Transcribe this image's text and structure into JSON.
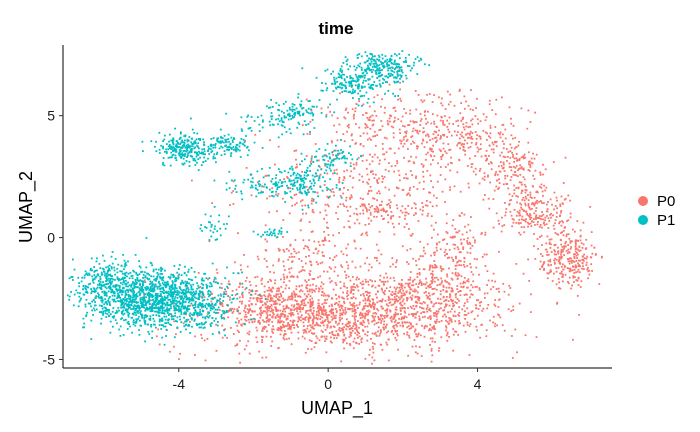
{
  "chart_data": {
    "type": "scatter",
    "title": "time",
    "xlabel": "UMAP_1",
    "ylabel": "UMAP_2",
    "xlim": [
      -7.1,
      7.6
    ],
    "ylim": [
      -5.35,
      7.9
    ],
    "x_ticks": [
      -4,
      0,
      4
    ],
    "y_ticks": [
      -5,
      0,
      5
    ],
    "x_tick_labels": [
      "-4",
      "0",
      "4"
    ],
    "y_tick_labels": [
      "-5",
      "0",
      "5"
    ],
    "grid": false,
    "legend_position": "right",
    "series": [
      {
        "name": "P0",
        "color": "#F8766D",
        "clusters": [
          {
            "cx": 0.3,
            "cy": -3.1,
            "sx": 2.0,
            "sy": 0.8,
            "n": 1300
          },
          {
            "cx": 2.6,
            "cy": -2.4,
            "sx": 1.0,
            "sy": 0.8,
            "n": 350
          },
          {
            "cx": -1.3,
            "cy": -2.8,
            "sx": 0.8,
            "sy": 0.6,
            "n": 250
          },
          {
            "cx": 3.4,
            "cy": -0.8,
            "sx": 0.5,
            "sy": 0.9,
            "n": 150
          },
          {
            "cx": 0.9,
            "cy": 2.0,
            "sx": 1.5,
            "sy": 1.1,
            "n": 380
          },
          {
            "cx": 3.3,
            "cy": 4.3,
            "sx": 0.9,
            "sy": 0.8,
            "n": 320
          },
          {
            "cx": 1.3,
            "cy": 4.9,
            "sx": 0.7,
            "sy": 0.5,
            "n": 100
          },
          {
            "cx": 4.9,
            "cy": 2.7,
            "sx": 0.5,
            "sy": 0.6,
            "n": 180
          },
          {
            "cx": 5.6,
            "cy": 1.0,
            "sx": 0.5,
            "sy": 0.5,
            "n": 200
          },
          {
            "cx": 6.4,
            "cy": -0.9,
            "sx": 0.4,
            "sy": 0.6,
            "n": 260
          },
          {
            "cx": 1.5,
            "cy": 1.1,
            "sx": 0.8,
            "sy": 0.2,
            "n": 70
          },
          {
            "cx": -0.3,
            "cy": -0.6,
            "sx": 0.8,
            "sy": 0.5,
            "n": 110
          }
        ]
      },
      {
        "name": "P1",
        "color": "#00BFC4",
        "clusters": [
          {
            "cx": -4.9,
            "cy": -2.5,
            "sx": 0.75,
            "sy": 0.6,
            "n": 900
          },
          {
            "cx": -3.7,
            "cy": -2.6,
            "sx": 0.6,
            "sy": 0.6,
            "n": 450
          },
          {
            "cx": -5.9,
            "cy": -2.0,
            "sx": 0.4,
            "sy": 0.6,
            "n": 250
          },
          {
            "cx": -3.8,
            "cy": 3.6,
            "sx": 0.4,
            "sy": 0.3,
            "n": 260
          },
          {
            "cx": -2.6,
            "cy": 3.8,
            "sx": 0.3,
            "sy": 0.25,
            "n": 90
          },
          {
            "cx": 1.5,
            "cy": 7.0,
            "sx": 0.45,
            "sy": 0.3,
            "n": 220
          },
          {
            "cx": 0.7,
            "cy": 6.3,
            "sx": 0.45,
            "sy": 0.35,
            "n": 170
          },
          {
            "cx": -0.9,
            "cy": 5.1,
            "sx": 0.4,
            "sy": 0.3,
            "n": 100
          },
          {
            "cx": -0.8,
            "cy": 2.3,
            "sx": 0.45,
            "sy": 0.4,
            "n": 160
          },
          {
            "cx": 0.1,
            "cy": 3.3,
            "sx": 0.3,
            "sy": 0.3,
            "n": 70
          },
          {
            "cx": -1.9,
            "cy": 2.1,
            "sx": 0.4,
            "sy": 0.3,
            "n": 50
          },
          {
            "cx": -1.5,
            "cy": 0.2,
            "sx": 0.2,
            "sy": 0.1,
            "n": 25
          },
          {
            "cx": -3.1,
            "cy": 0.4,
            "sx": 0.2,
            "sy": 0.3,
            "n": 30
          },
          {
            "cx": -1.8,
            "cy": 4.7,
            "sx": 0.7,
            "sy": 0.25,
            "n": 35
          }
        ]
      }
    ]
  },
  "legend": {
    "items": [
      {
        "label": "P0",
        "color": "#F8766D"
      },
      {
        "label": "P1",
        "color": "#00BFC4"
      }
    ]
  }
}
